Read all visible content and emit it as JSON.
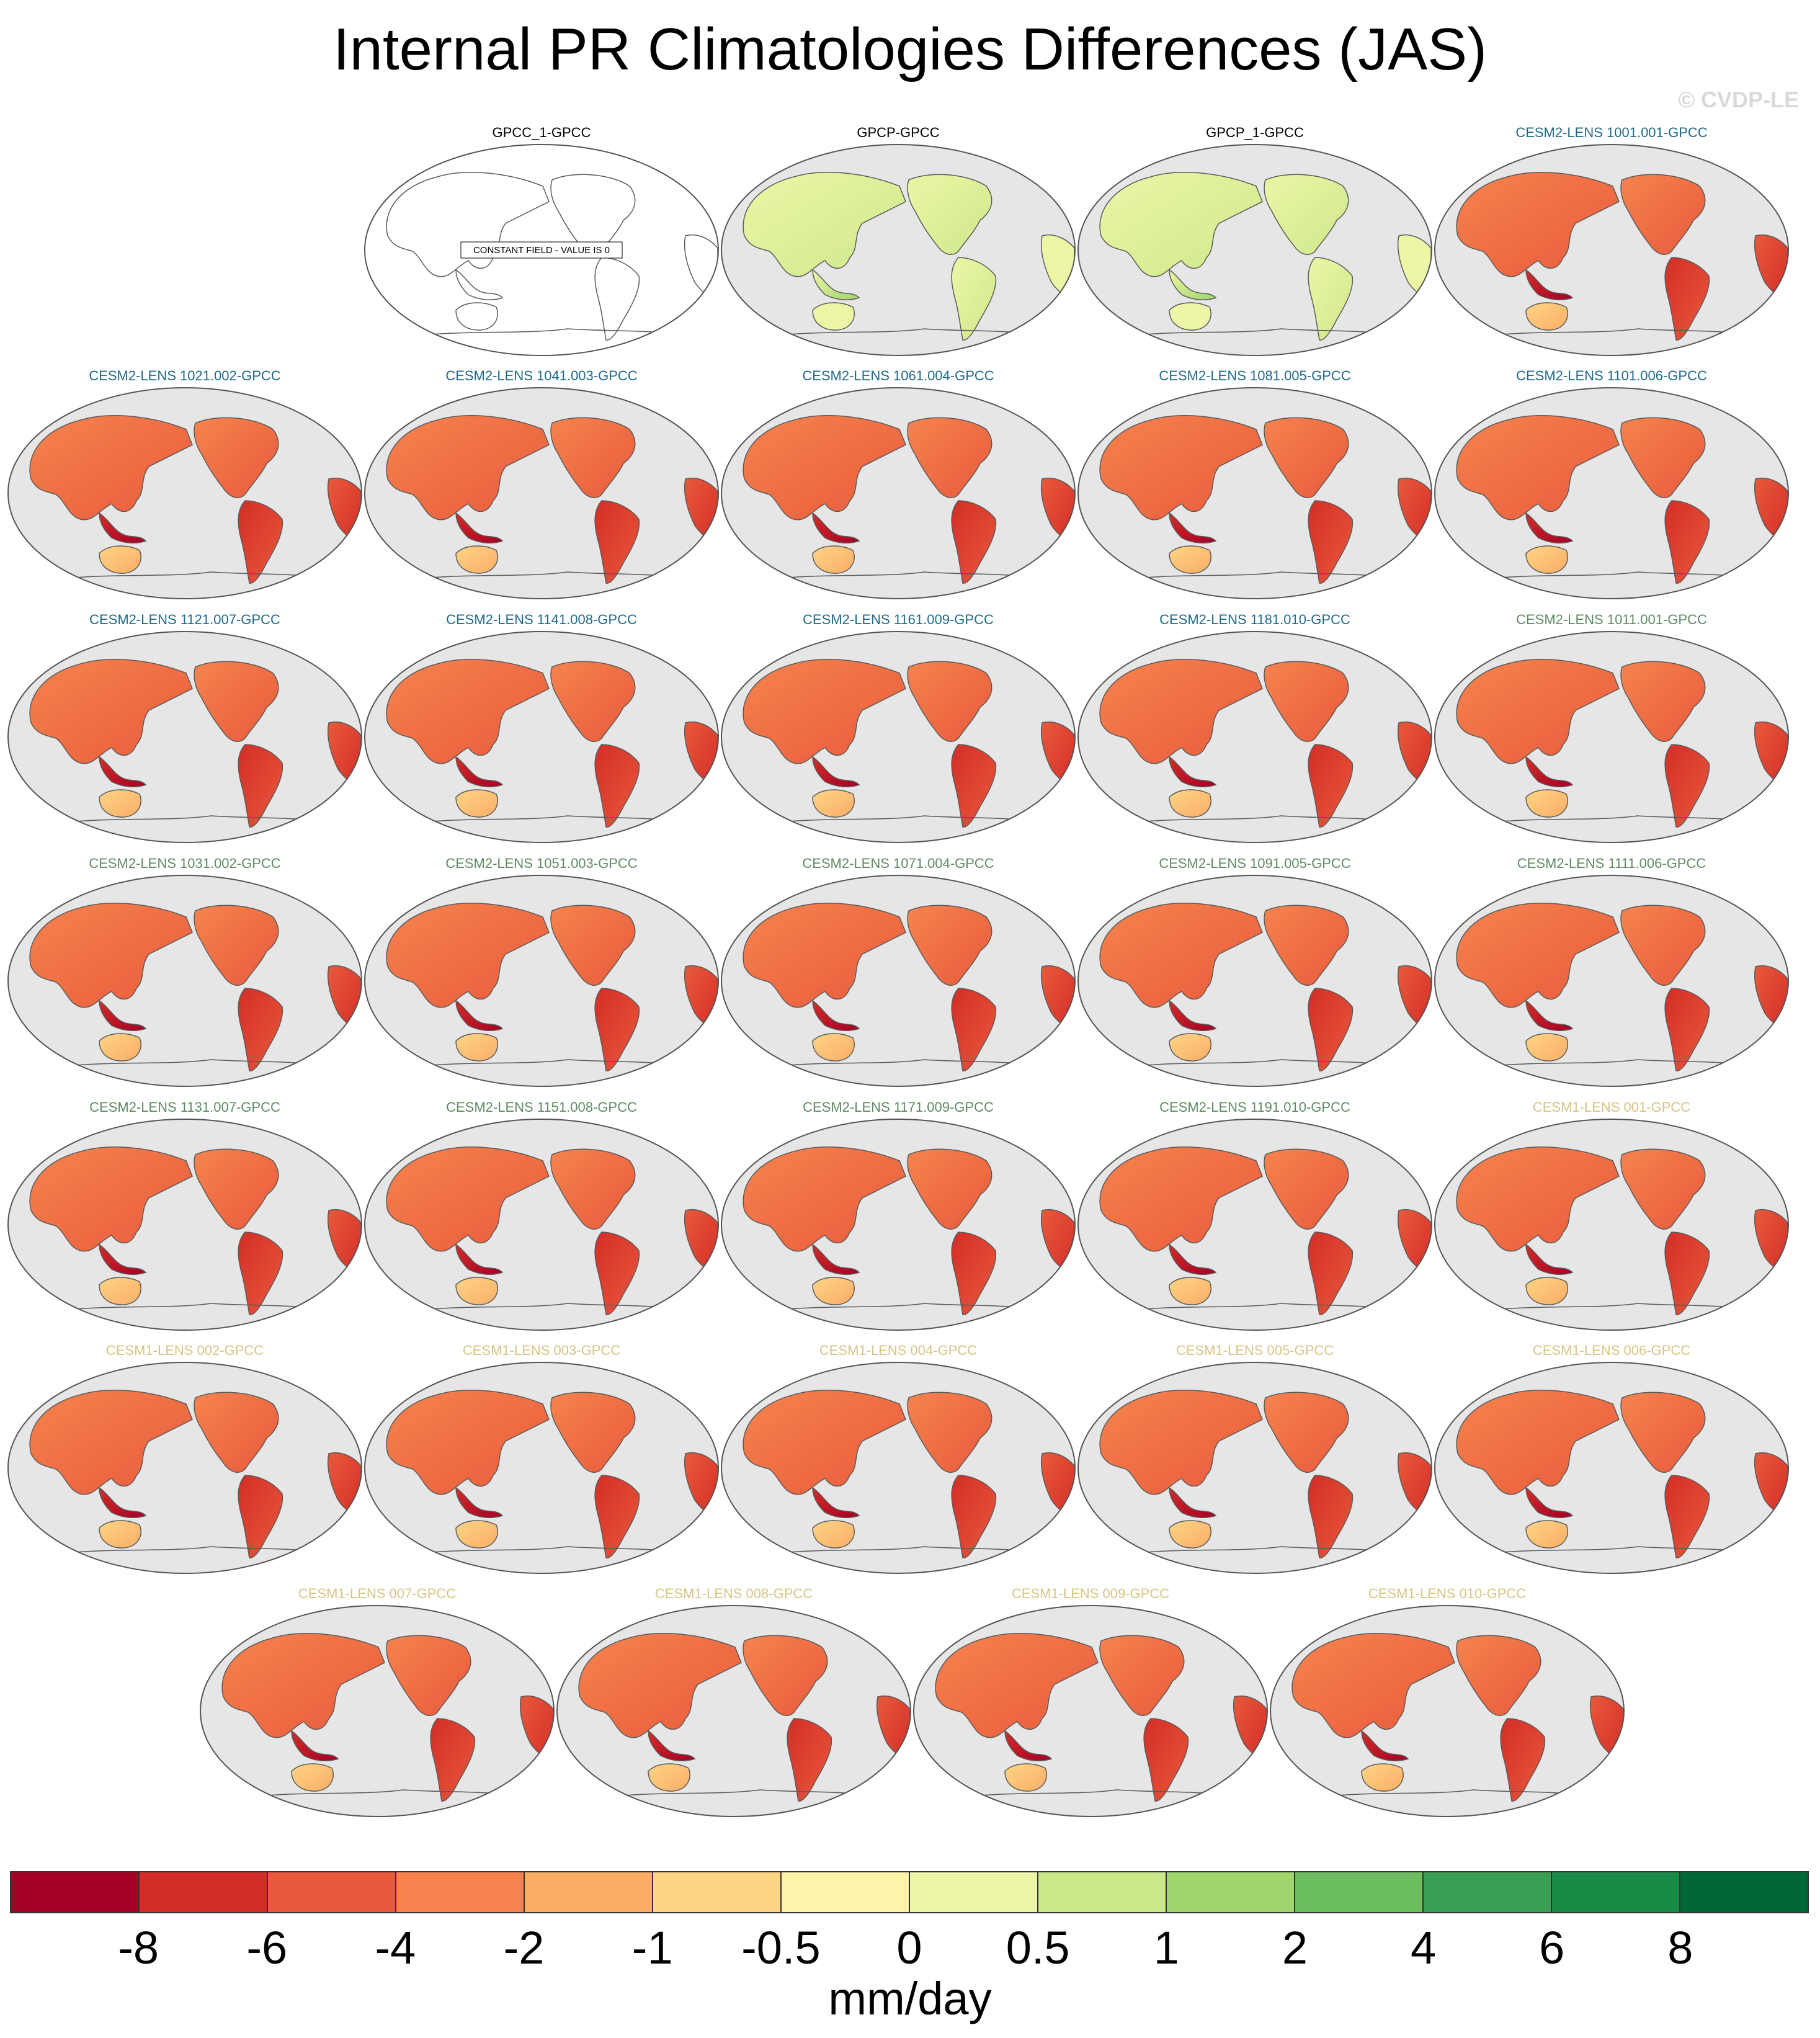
{
  "title": "Internal PR Climatologies Differences (JAS)",
  "watermark": "© CVDP-LE",
  "chart_data": {
    "type": "map-panels",
    "season": "JAS",
    "colors": {
      "ocean": "#e6e6e6",
      "coast": "#5a5a5a",
      "constant_field_ocean": "#ffffff"
    },
    "panels": [
      {
        "title": "GPCC_1-GPCC",
        "title_color": "#000000",
        "style": "constant",
        "note": "CONSTANT FIELD - VALUE IS 0"
      },
      {
        "title": "GPCP-GPCC",
        "title_color": "#000000",
        "style": "obs"
      },
      {
        "title": "GPCP_1-GPCC",
        "title_color": "#000000",
        "style": "obs"
      },
      {
        "title": "CESM2-LENS 1001.001-GPCC",
        "title_color": "#1f6a8a",
        "style": "model"
      },
      {
        "title": "CESM2-LENS 1021.002-GPCC",
        "title_color": "#1f6a8a",
        "style": "model"
      },
      {
        "title": "CESM2-LENS 1041.003-GPCC",
        "title_color": "#1f6a8a",
        "style": "model"
      },
      {
        "title": "CESM2-LENS 1061.004-GPCC",
        "title_color": "#1f6a8a",
        "style": "model"
      },
      {
        "title": "CESM2-LENS 1081.005-GPCC",
        "title_color": "#1f6a8a",
        "style": "model"
      },
      {
        "title": "CESM2-LENS 1101.006-GPCC",
        "title_color": "#1f6a8a",
        "style": "model"
      },
      {
        "title": "CESM2-LENS 1121.007-GPCC",
        "title_color": "#1f6a8a",
        "style": "model"
      },
      {
        "title": "CESM2-LENS 1141.008-GPCC",
        "title_color": "#1f6a8a",
        "style": "model"
      },
      {
        "title": "CESM2-LENS 1161.009-GPCC",
        "title_color": "#1f6a8a",
        "style": "model"
      },
      {
        "title": "CESM2-LENS 1181.010-GPCC",
        "title_color": "#1f6a8a",
        "style": "model"
      },
      {
        "title": "CESM2-LENS 1011.001-GPCC",
        "title_color": "#5e8a63",
        "style": "model"
      },
      {
        "title": "CESM2-LENS 1031.002-GPCC",
        "title_color": "#5e8a63",
        "style": "model"
      },
      {
        "title": "CESM2-LENS 1051.003-GPCC",
        "title_color": "#5e8a63",
        "style": "model"
      },
      {
        "title": "CESM2-LENS 1071.004-GPCC",
        "title_color": "#5e8a63",
        "style": "model"
      },
      {
        "title": "CESM2-LENS 1091.005-GPCC",
        "title_color": "#5e8a63",
        "style": "model"
      },
      {
        "title": "CESM2-LENS 1111.006-GPCC",
        "title_color": "#5e8a63",
        "style": "model"
      },
      {
        "title": "CESM2-LENS 1131.007-GPCC",
        "title_color": "#5e8a63",
        "style": "model"
      },
      {
        "title": "CESM2-LENS 1151.008-GPCC",
        "title_color": "#5e8a63",
        "style": "model"
      },
      {
        "title": "CESM2-LENS 1171.009-GPCC",
        "title_color": "#5e8a63",
        "style": "model"
      },
      {
        "title": "CESM2-LENS 1191.010-GPCC",
        "title_color": "#5e8a63",
        "style": "model"
      },
      {
        "title": "CESM1-LENS 001-GPCC",
        "title_color": "#d8c483",
        "style": "model"
      },
      {
        "title": "CESM1-LENS 002-GPCC",
        "title_color": "#d8c483",
        "style": "model"
      },
      {
        "title": "CESM1-LENS 003-GPCC",
        "title_color": "#d8c483",
        "style": "model"
      },
      {
        "title": "CESM1-LENS 004-GPCC",
        "title_color": "#d8c483",
        "style": "model"
      },
      {
        "title": "CESM1-LENS 005-GPCC",
        "title_color": "#d8c483",
        "style": "model"
      },
      {
        "title": "CESM1-LENS 006-GPCC",
        "title_color": "#d8c483",
        "style": "model"
      },
      {
        "title": "CESM1-LENS 007-GPCC",
        "title_color": "#d8c483",
        "style": "model"
      },
      {
        "title": "CESM1-LENS 008-GPCC",
        "title_color": "#d8c483",
        "style": "model"
      },
      {
        "title": "CESM1-LENS 009-GPCC",
        "title_color": "#d8c483",
        "style": "model"
      },
      {
        "title": "CESM1-LENS 010-GPCC",
        "title_color": "#d8c483",
        "style": "model"
      }
    ],
    "colorbar": {
      "units": "mm/day",
      "levels": [
        "-8",
        "-6",
        "-4",
        "-2",
        "-1",
        "-0.5",
        "0",
        "0.5",
        "1",
        "2",
        "4",
        "6",
        "8"
      ],
      "colors": [
        "#a50026",
        "#d42d27",
        "#e85a3b",
        "#f6834e",
        "#fbad66",
        "#fdd585",
        "#fef3a9",
        "#ecf6a6",
        "#cde88a",
        "#a1d56d",
        "#6cbd5f",
        "#3a9e52",
        "#1a8a47",
        "#006837"
      ]
    }
  }
}
